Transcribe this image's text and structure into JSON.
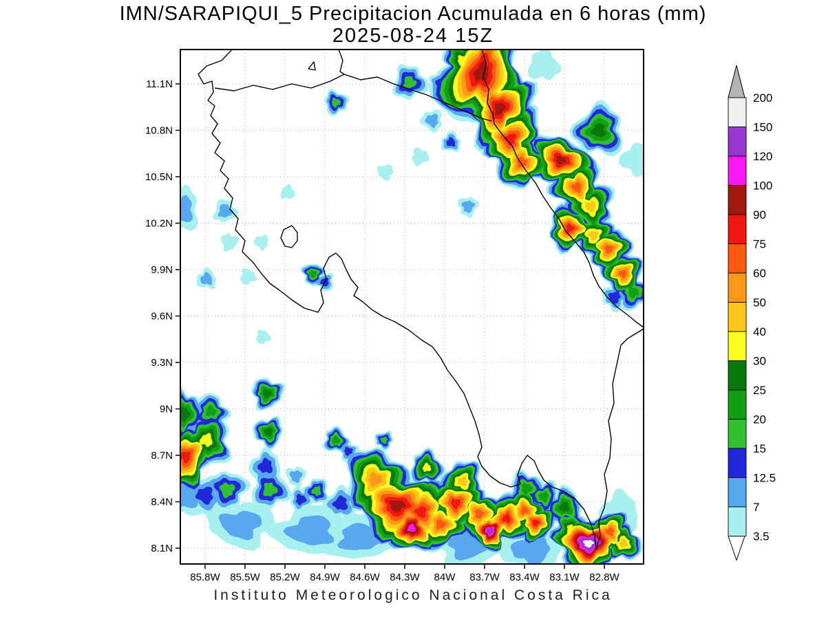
{
  "title": "IMN/SARAPIQUI_5 Precipitacion Acumulada en 6 horas (mm)",
  "subtitle": "2025-08-24 15Z",
  "footer": "Instituto Meteorologico Nacional Costa Rica",
  "chart_data": {
    "type": "heatmap",
    "projection": "lonlat",
    "region": "Costa Rica",
    "grid": true,
    "grid_color": "#b0b0b0",
    "x_axis": {
      "range_west": 85.986,
      "range_east": 82.505,
      "ticks": [
        {
          "v": 85.8,
          "label": "85.8W"
        },
        {
          "v": 85.5,
          "label": "85.5W"
        },
        {
          "v": 85.2,
          "label": "85.2W"
        },
        {
          "v": 84.9,
          "label": "84.9W"
        },
        {
          "v": 84.6,
          "label": "84.6W"
        },
        {
          "v": 84.3,
          "label": "84.3W"
        },
        {
          "v": 84.0,
          "label": "84W"
        },
        {
          "v": 83.7,
          "label": "83.7W"
        },
        {
          "v": 83.4,
          "label": "83.4W"
        },
        {
          "v": 83.1,
          "label": "83.1W"
        },
        {
          "v": 82.8,
          "label": "82.8W"
        }
      ]
    },
    "y_axis": {
      "range_north": 11.322,
      "range_south": 7.998,
      "ticks": [
        {
          "v": 11.1,
          "label": "11.1N"
        },
        {
          "v": 10.8,
          "label": "10.8N"
        },
        {
          "v": 10.5,
          "label": "10.5N"
        },
        {
          "v": 10.2,
          "label": "10.2N"
        },
        {
          "v": 9.9,
          "label": "9.9N"
        },
        {
          "v": 9.6,
          "label": "9.6N"
        },
        {
          "v": 9.3,
          "label": "9.3N"
        },
        {
          "v": 9.0,
          "label": "9N"
        },
        {
          "v": 8.7,
          "label": "8.7N"
        },
        {
          "v": 8.4,
          "label": "8.4N"
        },
        {
          "v": 8.1,
          "label": "8.1N"
        }
      ]
    },
    "colorbar": {
      "units": "mm",
      "levels_mm": [
        3.5,
        7,
        12.5,
        15,
        20,
        25,
        30,
        40,
        50,
        60,
        75,
        90,
        100,
        120,
        150,
        200
      ],
      "labels_top_to_bottom": [
        "200",
        "150",
        "120",
        "100",
        "90",
        "75",
        "60",
        "50",
        "40",
        "30",
        "25",
        "20",
        "15",
        "12.5",
        "7",
        "3.5"
      ],
      "colors_low_to_high": [
        "#a8f0f0",
        "#58a8f0",
        "#2028d8",
        "#30c030",
        "#12a012",
        "#0a780a",
        "#ffff20",
        "#ffc818",
        "#ff9818",
        "#ff5a10",
        "#f01810",
        "#a01810",
        "#f818f8",
        "#9838d0",
        "#f0f0f0"
      ],
      "over_color": "#b4b4b4",
      "under_color": "#ffffff"
    },
    "precip_cells_lon_lat_r_peak": [
      [
        83.721,
        11.175,
        0.3,
        95,
        0.85,
        1.25,
        20
      ],
      [
        83.865,
        11.251,
        0.133,
        35
      ],
      [
        83.586,
        10.94,
        0.213,
        95,
        0.9,
        1.15,
        30
      ],
      [
        83.503,
        10.744,
        0.196,
        80,
        0.9,
        1.1,
        35
      ],
      [
        83.42,
        10.593,
        0.169,
        65
      ],
      [
        83.126,
        10.607,
        0.178,
        95,
        1.15,
        0.85,
        20
      ],
      [
        83.007,
        10.433,
        0.16,
        65
      ],
      [
        82.903,
        10.309,
        0.151,
        45,
        1,
        1,
        40
      ],
      [
        83.059,
        10.167,
        0.142,
        80
      ],
      [
        82.883,
        10.122,
        0.133,
        45
      ],
      [
        82.769,
        10.033,
        0.142,
        65,
        1,
        1,
        45
      ],
      [
        82.66,
        9.873,
        0.133,
        65,
        1,
        1,
        50
      ],
      [
        82.583,
        9.753,
        0.107,
        22
      ],
      [
        82.722,
        9.722,
        0.08,
        13.5
      ],
      [
        82.841,
        10.798,
        0.16,
        27
      ],
      [
        84.264,
        11.109,
        0.107,
        17
      ],
      [
        84.031,
        11.1,
        0.071,
        13.5
      ],
      [
        84.093,
        10.864,
        0.067,
        9
      ],
      [
        83.953,
        10.722,
        0.062,
        13.5
      ],
      [
        84.186,
        10.629,
        0.053,
        5
      ],
      [
        83.824,
        10.309,
        0.062,
        9
      ],
      [
        82.542,
        10.611,
        0.107,
        5
      ],
      [
        83.255,
        11.22,
        0.098,
        5
      ],
      [
        84.817,
        10.98,
        0.076,
        17
      ],
      [
        84.445,
        10.531,
        0.049,
        5
      ],
      [
        85.955,
        10.287,
        0.107,
        9,
        0.8,
        1.3
      ],
      [
        85.65,
        10.278,
        0.071,
        9
      ],
      [
        85.619,
        10.078,
        0.053,
        5
      ],
      [
        85.376,
        10.078,
        0.044,
        5
      ],
      [
        85.789,
        9.838,
        0.062,
        9
      ],
      [
        85.479,
        9.855,
        0.049,
        5
      ],
      [
        84.988,
        9.873,
        0.071,
        22
      ],
      [
        84.9,
        9.82,
        0.058,
        13.5
      ],
      [
        85.179,
        10.398,
        0.044,
        5
      ],
      [
        85.955,
        8.967,
        0.133,
        27,
        0.85,
        1.2
      ],
      [
        85.945,
        8.691,
        0.187,
        80,
        0.9,
        1.1
      ],
      [
        85.789,
        8.798,
        0.16,
        35
      ],
      [
        85.758,
        8.984,
        0.107,
        22
      ],
      [
        85.334,
        9.1,
        0.1,
        27
      ],
      [
        85.324,
        8.851,
        0.095,
        27
      ],
      [
        85.345,
        8.629,
        0.1,
        13.5
      ],
      [
        85.314,
        8.478,
        0.12,
        17
      ],
      [
        85.634,
        8.478,
        0.124,
        17
      ],
      [
        85.8,
        8.442,
        0.116,
        13.5
      ],
      [
        85.945,
        8.433,
        0.133,
        9
      ],
      [
        85.081,
        8.415,
        0.071,
        13.5
      ],
      [
        85.117,
        8.566,
        0.062,
        9
      ],
      [
        84.962,
        8.469,
        0.08,
        17
      ],
      [
        84.817,
        8.798,
        0.08,
        22
      ],
      [
        84.724,
        8.727,
        0.058,
        13.5
      ],
      [
        84.455,
        8.798,
        0.058,
        17
      ],
      [
        84.781,
        8.389,
        0.098,
        13.5
      ],
      [
        84.522,
        8.544,
        0.204,
        55,
        1,
        1,
        -15
      ],
      [
        84.357,
        8.375,
        0.249,
        95,
        1.15,
        0.9
      ],
      [
        84.176,
        8.335,
        0.204,
        80
      ],
      [
        84.248,
        8.229,
        0.16,
        110
      ],
      [
        84.031,
        8.255,
        0.16,
        65
      ],
      [
        83.917,
        8.389,
        0.169,
        80
      ],
      [
        83.865,
        8.531,
        0.133,
        45
      ],
      [
        84.134,
        8.62,
        0.107,
        35
      ],
      [
        83.741,
        8.322,
        0.151,
        65
      ],
      [
        83.659,
        8.211,
        0.124,
        130
      ],
      [
        83.535,
        8.291,
        0.151,
        80
      ],
      [
        83.4,
        8.344,
        0.133,
        65
      ],
      [
        83.317,
        8.264,
        0.124,
        80
      ],
      [
        83.255,
        8.433,
        0.098,
        22
      ],
      [
        83.1,
        8.366,
        0.116,
        27
      ],
      [
        83.048,
        8.22,
        0.124,
        35
      ],
      [
        82.919,
        8.131,
        0.196,
        160,
        1.15,
        0.85
      ],
      [
        82.759,
        8.206,
        0.133,
        65
      ],
      [
        82.655,
        8.131,
        0.116,
        45
      ],
      [
        83.385,
        8.486,
        0.107,
        22
      ],
      [
        85.531,
        8.255,
        0.178,
        9,
        1.2,
        0.8
      ],
      [
        85.003,
        8.211,
        0.196,
        9,
        1.2,
        0.8
      ],
      [
        84.641,
        8.166,
        0.178,
        9,
        1.2,
        0.8
      ],
      [
        83.824,
        8.122,
        0.178,
        9,
        1.2,
        0.8
      ],
      [
        83.348,
        8.086,
        0.169,
        9,
        1.2,
        0.8
      ],
      [
        82.686,
        8.331,
        0.124,
        5
      ],
      [
        85.365,
        9.465,
        0.044,
        5
      ]
    ]
  }
}
